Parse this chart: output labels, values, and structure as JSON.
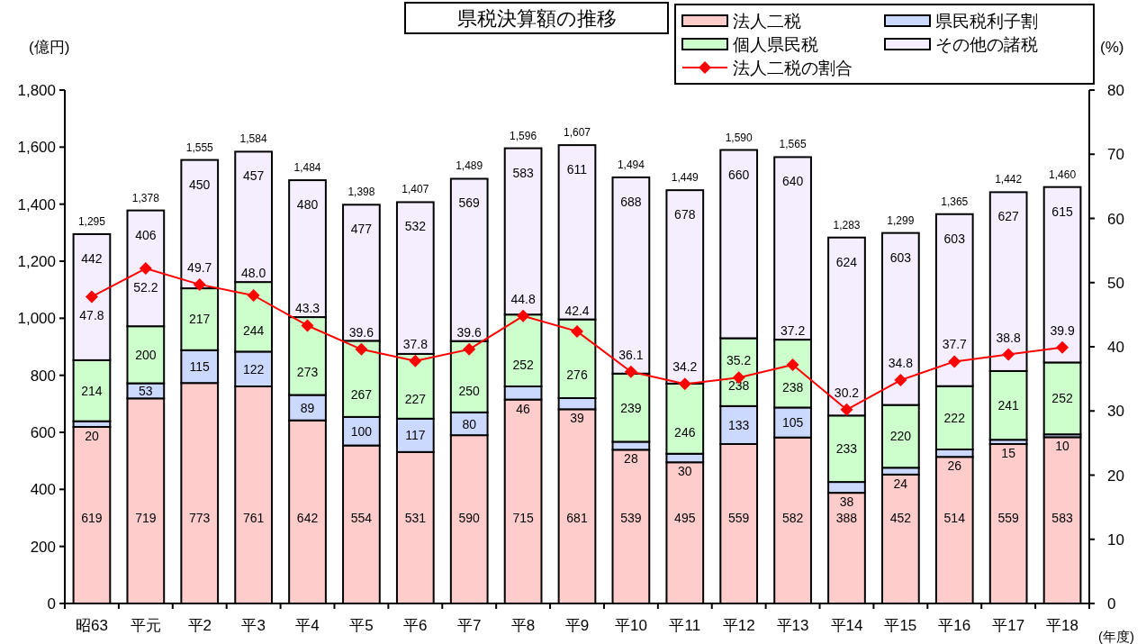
{
  "chart_data": {
    "type": "bar",
    "stacked": true,
    "title": "県税決算額の推移",
    "ylabel": "(億円)",
    "y2label": "(%)",
    "xlabel": "(年度)",
    "categories": [
      "昭63",
      "平元",
      "平2",
      "平3",
      "平4",
      "平5",
      "平6",
      "平7",
      "平8",
      "平9",
      "平10",
      "平11",
      "平12",
      "平13",
      "平14",
      "平15",
      "平16",
      "平17",
      "平18"
    ],
    "series": [
      {
        "name": "法人二税",
        "color": "#ffcccc",
        "values": [
          619,
          719,
          773,
          761,
          642,
          554,
          531,
          590,
          715,
          681,
          539,
          495,
          559,
          582,
          388,
          452,
          514,
          559,
          583
        ],
        "value_labels": [
          "619",
          "719",
          "773",
          "761",
          "642",
          "554",
          "531",
          "590",
          "715",
          "681",
          "539",
          "495",
          "559",
          "582",
          "388",
          "452",
          "514",
          "559",
          "583"
        ]
      },
      {
        "name": "県民税利子割",
        "color": "#ccd9ff",
        "values": [
          20,
          53,
          115,
          122,
          89,
          100,
          117,
          80,
          46,
          39,
          28,
          30,
          133,
          105,
          38,
          24,
          26,
          15,
          10
        ],
        "value_labels": [
          "20",
          "53",
          "115",
          "122",
          "89",
          "100",
          "117",
          "80",
          "46",
          "39",
          "28",
          "30",
          "133",
          "105",
          "38",
          "24",
          "26",
          "15",
          "10"
        ]
      },
      {
        "name": "個人県民税",
        "color": "#ccffcc",
        "values": [
          214,
          200,
          217,
          244,
          273,
          267,
          227,
          250,
          252,
          276,
          239,
          246,
          238,
          238,
          233,
          220,
          222,
          241,
          252
        ],
        "value_labels": [
          "214",
          "200",
          "217",
          "244",
          "273",
          "267",
          "227",
          "250",
          "252",
          "276",
          "239",
          "246",
          "238",
          "238",
          "233",
          "220",
          "222",
          "241",
          "252"
        ]
      },
      {
        "name": "その他の諸税",
        "color": "#f5eeff",
        "values": [
          442,
          406,
          450,
          457,
          480,
          477,
          532,
          569,
          583,
          611,
          688,
          678,
          660,
          640,
          624,
          603,
          603,
          627,
          615
        ],
        "value_labels": [
          "442",
          "406",
          "450",
          "457",
          "480",
          "477",
          "532",
          "569",
          "583",
          "611",
          "688",
          "678",
          "660",
          "640",
          "624",
          "603",
          "603",
          "627",
          "615"
        ]
      },
      {
        "name": "法人二税の割合",
        "type": "line",
        "axis": "y2",
        "color": "#ff0000",
        "marker": "diamond",
        "values": [
          47.8,
          52.2,
          49.7,
          48.0,
          43.3,
          39.6,
          37.8,
          39.6,
          44.8,
          42.4,
          36.1,
          34.2,
          35.2,
          37.2,
          30.2,
          34.8,
          37.7,
          38.8,
          39.9
        ],
        "value_labels": [
          "47.8",
          "52.2",
          "49.7",
          "48.0",
          "43.3",
          "39.6",
          "37.8",
          "39.6",
          "44.8",
          "42.4",
          "36.1",
          "34.2",
          "35.2",
          "37.2",
          "30.2",
          "34.8",
          "37.7",
          "38.8",
          "39.9"
        ]
      }
    ],
    "totals": [
      "1,295",
      "1,378",
      "1,555",
      "1,584",
      "1,484",
      "1,398",
      "1,407",
      "1,489",
      "1,596",
      "1,607",
      "1,494",
      "1,449",
      "1,590",
      "1,565",
      "1,283",
      "1,299",
      "1,365",
      "1,442",
      "1,460"
    ],
    "ylim": [
      0,
      1800
    ],
    "yticks": [
      0,
      {
        "value": 200,
        "label": "200"
      },
      {
        "value": 400,
        "label": "400"
      },
      {
        "value": 600,
        "label": "600"
      },
      {
        "value": 800,
        "label": "800"
      },
      {
        "value": 1000,
        "label": "1,000"
      },
      {
        "value": 1200,
        "label": "1,200"
      },
      {
        "value": 1400,
        "label": "1,400"
      },
      {
        "value": 1600,
        "label": "1,600"
      },
      {
        "value": 1800,
        "label": "1,800"
      }
    ],
    "y2lim": [
      0,
      80
    ],
    "y2ticks": [
      0,
      10,
      20,
      30,
      40,
      50,
      60,
      70,
      80
    ],
    "legend": "top right",
    "grid": false
  }
}
